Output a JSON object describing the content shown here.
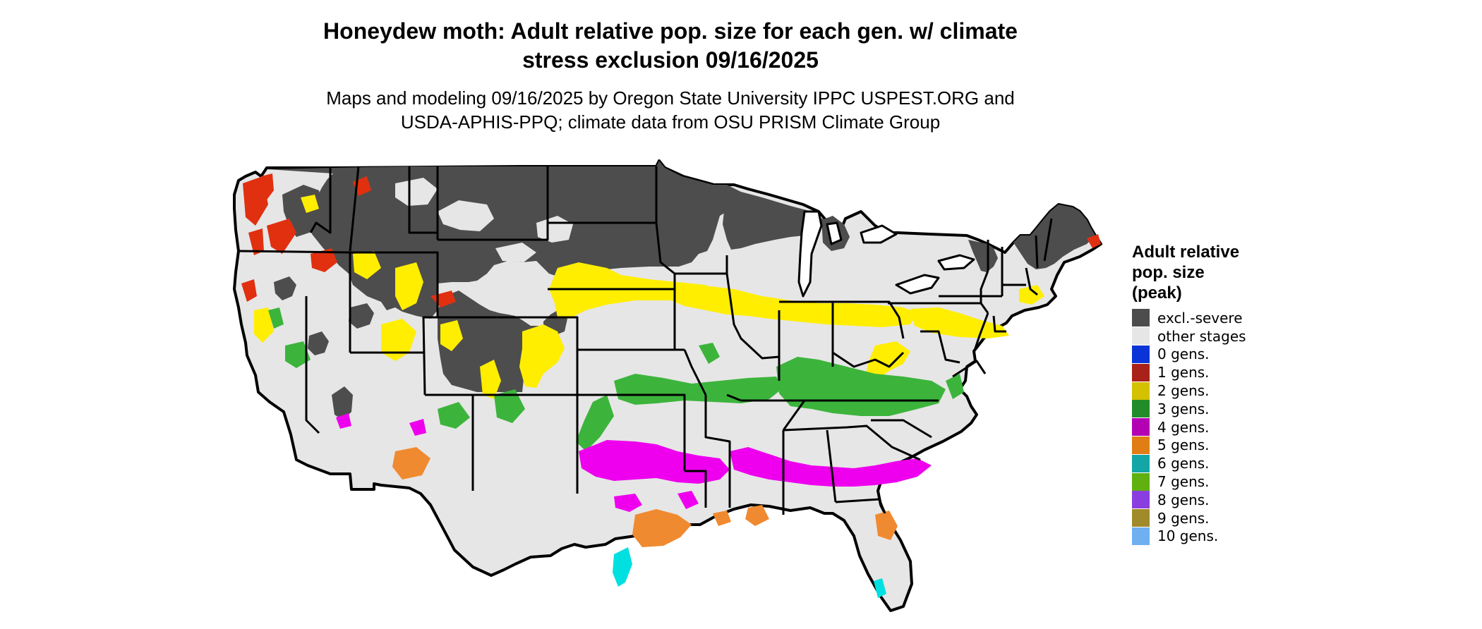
{
  "title_line1": "Honeydew moth: Adult relative pop. size for each gen. w/ climate",
  "title_line2": "stress exclusion 09/16/2025",
  "subtitle_line1": "Maps and modeling 09/16/2025 by Oregon State University IPPC USPEST.ORG and",
  "subtitle_line2": "USDA-APHIS-PPQ; climate data from OSU PRISM Climate Group",
  "legend": {
    "title_line1": "Adult relative",
    "title_line2": "pop. size",
    "title_line3": "(peak)",
    "items": [
      {
        "label": "excl.-severe",
        "color": "#4d4d4d"
      },
      {
        "label": "other stages",
        "color": "#e6e6e6"
      },
      {
        "label": "0 gens.",
        "color": "#0a34d8"
      },
      {
        "label": "1 gens.",
        "color": "#a8221a"
      },
      {
        "label": "2 gens.",
        "color": "#d4c100"
      },
      {
        "label": "3 gens.",
        "color": "#218c28"
      },
      {
        "label": "4 gens.",
        "color": "#b300b3"
      },
      {
        "label": "5 gens.",
        "color": "#e07d14"
      },
      {
        "label": "6 gens.",
        "color": "#14a6a6"
      },
      {
        "label": "7 gens.",
        "color": "#60b010"
      },
      {
        "label": "8 gens.",
        "color": "#8a3ee0"
      },
      {
        "label": "9 gens.",
        "color": "#a08a2a"
      },
      {
        "label": "10 gens.",
        "color": "#6fb0f0"
      }
    ]
  },
  "map_colors": {
    "background": "#e6e6e6",
    "excluded": "#4d4d4d",
    "gen1": "#e03010",
    "gen2": "#ffee00",
    "gen3": "#3cb43c",
    "gen4": "#ee00ee",
    "gen5": "#f08a30",
    "gen6": "#00e0e0",
    "border": "#000000"
  }
}
